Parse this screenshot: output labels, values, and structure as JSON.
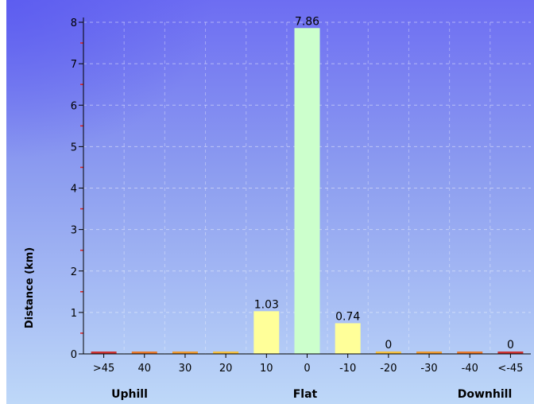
{
  "chart_data": {
    "type": "bar",
    "categories": [
      ">45",
      "40",
      "30",
      "20",
      "10",
      "0",
      "-10",
      "-20",
      "-30",
      "-40",
      "<-45"
    ],
    "values": [
      0.03,
      0.02,
      0.02,
      0.01,
      1.03,
      7.86,
      0.74,
      0.0,
      0.02,
      0.02,
      0.04
    ],
    "value_labels": [
      "",
      "",
      "",
      "",
      "1.03",
      "7.86",
      "0.74",
      "0",
      "",
      "",
      "0"
    ],
    "bar_colors": [
      "#cc3333",
      "#e8792c",
      "#ee9a30",
      "#f5c040",
      "#ffff99",
      "#ccffcc",
      "#ffff99",
      "#f5c040",
      "#ee9a30",
      "#e8792c",
      "#cc3333"
    ],
    "ylabel": "Distance (km)",
    "ylim": [
      0,
      8
    ],
    "yticks": [
      "0",
      "1",
      "2",
      "3",
      "4",
      "5",
      "6",
      "7",
      "8"
    ],
    "grid": true,
    "groups": [
      "Uphill",
      "Flat",
      "Downhill"
    ]
  }
}
